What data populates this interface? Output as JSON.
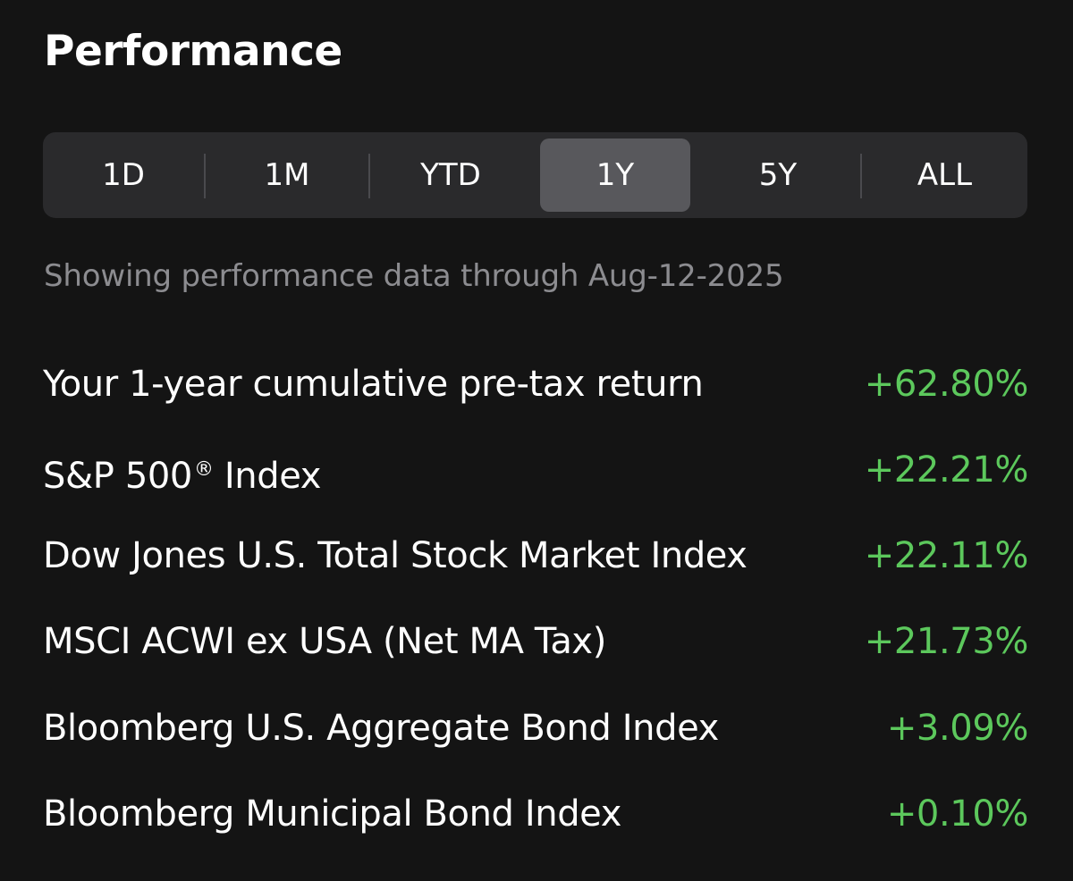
{
  "header": {
    "title": "Performance"
  },
  "periods": {
    "tabs": [
      {
        "label": "1D",
        "active": false
      },
      {
        "label": "1M",
        "active": false
      },
      {
        "label": "YTD",
        "active": false
      },
      {
        "label": "1Y",
        "active": true
      },
      {
        "label": "5Y",
        "active": false
      },
      {
        "label": "ALL",
        "active": false
      }
    ]
  },
  "subtitle": "Showing performance data through Aug-12-2025",
  "returns": [
    {
      "label": "Your 1-year cumulative pre-tax return",
      "value": "+62.80%"
    },
    {
      "label": "S&P 500",
      "label_suffix": "®",
      "label_after": " Index",
      "value": "+22.21%"
    },
    {
      "label": "Dow Jones U.S. Total Stock Market Index",
      "value": "+22.11%"
    },
    {
      "label": "MSCI ACWI ex USA (Net MA Tax)",
      "value": "+21.73%"
    },
    {
      "label": "Bloomberg U.S. Aggregate Bond Index",
      "value": "+3.09%"
    },
    {
      "label": "Bloomberg Municipal Bond Index",
      "value": "+0.10%"
    }
  ],
  "colors": {
    "background": "#141414",
    "positive": "#5cc85c",
    "muted_text": "#8c8c90",
    "segment_bg": "#2a2a2c",
    "segment_active": "#58585c"
  }
}
